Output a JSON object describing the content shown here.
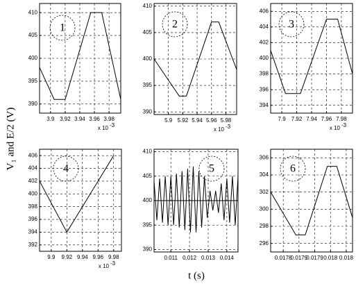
{
  "figure": {
    "ylabel": "V₁ and E/2 (V)",
    "xlabel": "t (s)"
  },
  "chart_data": [
    {
      "type": "line",
      "annotation": "1",
      "multiplier": {
        "base": "x 10",
        "exponent": "-3"
      },
      "xlim": [
        3.885,
        3.996
      ],
      "xticks": [
        3.9,
        3.92,
        3.94,
        3.96,
        3.98
      ],
      "ylim": [
        388,
        412
      ],
      "yticks": [
        390,
        395,
        400,
        405,
        410
      ],
      "grid": true,
      "series": [
        {
          "color": "#000000",
          "x": [
            3.885,
            3.905,
            3.92,
            3.955,
            3.97,
            3.996
          ],
          "values": [
            398,
            391,
            391,
            410,
            410,
            391
          ]
        }
      ]
    },
    {
      "type": "line",
      "annotation": "2",
      "multiplier": {
        "base": "x 10",
        "exponent": "-3"
      },
      "xlim": [
        5.88,
        5.995
      ],
      "xticks": [
        5.9,
        5.92,
        5.94,
        5.96,
        5.98
      ],
      "ylim": [
        389.5,
        410.5
      ],
      "yticks": [
        390,
        395,
        400,
        405,
        410
      ],
      "grid": true,
      "series": [
        {
          "color": "#000000",
          "x": [
            5.88,
            5.915,
            5.925,
            5.96,
            5.97,
            5.995
          ],
          "values": [
            400,
            393,
            393,
            407,
            407,
            398
          ]
        }
      ]
    },
    {
      "type": "line",
      "annotation": "3",
      "multiplier": {
        "base": "x 10",
        "exponent": "-3"
      },
      "xlim": [
        7.885,
        7.995
      ],
      "xticks": [
        7.9,
        7.92,
        7.94,
        7.96,
        7.98
      ],
      "ylim": [
        393,
        407
      ],
      "yticks": [
        394,
        396,
        398,
        400,
        402,
        404,
        406
      ],
      "grid": true,
      "series": [
        {
          "color": "#000000",
          "x": [
            7.885,
            7.905,
            7.925,
            7.96,
            7.975,
            7.995
          ],
          "values": [
            401,
            395.5,
            395.5,
            405,
            405,
            398
          ]
        }
      ]
    },
    {
      "type": "line",
      "annotation": "4",
      "multiplier": {
        "base": "x 10",
        "exponent": "-3"
      },
      "xlim": [
        9.885,
        9.99
      ],
      "xticks": [
        9.9,
        9.92,
        9.94,
        9.96,
        9.98
      ],
      "ylim": [
        391,
        407
      ],
      "yticks": [
        392,
        394,
        396,
        398,
        400,
        402,
        404,
        406
      ],
      "grid": true,
      "series": [
        {
          "color": "#000000",
          "x": [
            9.885,
            9.92,
            9.98
          ],
          "values": [
            402,
            394,
            406
          ]
        }
      ]
    },
    {
      "type": "line",
      "annotation": "5",
      "xlim": [
        0.0101,
        0.0146
      ],
      "xticks": [
        0.011,
        0.012,
        0.013,
        0.014
      ],
      "ylim": [
        389.5,
        410.5
      ],
      "yticks": [
        390,
        395,
        400,
        405,
        410
      ],
      "grid": true,
      "series": [
        {
          "color": "#000000",
          "x": [
            0.0101,
            0.01025,
            0.0104,
            0.01055,
            0.0107,
            0.01085,
            0.011,
            0.01115,
            0.0113,
            0.01145,
            0.0116,
            0.01175,
            0.0119,
            0.01205,
            0.0122,
            0.01235,
            0.0125,
            0.01265,
            0.0128,
            0.01295,
            0.0131,
            0.01325,
            0.0134,
            0.01355,
            0.0137,
            0.01385,
            0.014,
            0.01415,
            0.0143,
            0.01445,
            0.0146
          ],
          "values": [
            404,
            396,
            404.5,
            395.5,
            405,
            395,
            405,
            395,
            405.5,
            394.5,
            406,
            394,
            406.5,
            393.5,
            407,
            393.5,
            406,
            394.5,
            405,
            396.5,
            402,
            398,
            402,
            397.5,
            403.5,
            396,
            404.5,
            395.5,
            405,
            395,
            405
          ]
        },
        {
          "color": "#000000",
          "x": [
            0.0101,
            0.0146
          ],
          "values": [
            400,
            400
          ]
        }
      ]
    },
    {
      "type": "line",
      "annotation": "6",
      "xlim": [
        0.01776,
        0.01802
      ],
      "xticks": [
        0.0178,
        {
          "value": 0.01785,
          "label": "0.0179"
        },
        0.0179,
        {
          "value": 0.01795,
          "label": "0.018"
        },
        0.018
      ],
      "ylim": [
        295,
        307
      ],
      "yticks": [
        296,
        298,
        300,
        302,
        304,
        306
      ],
      "grid": true,
      "series": [
        {
          "color": "#000000",
          "x": [
            0.01776,
            0.01784,
            0.01787,
            0.01794,
            0.01797,
            0.01802
          ],
          "values": [
            302,
            297,
            297,
            305,
            305,
            299
          ]
        }
      ]
    }
  ]
}
